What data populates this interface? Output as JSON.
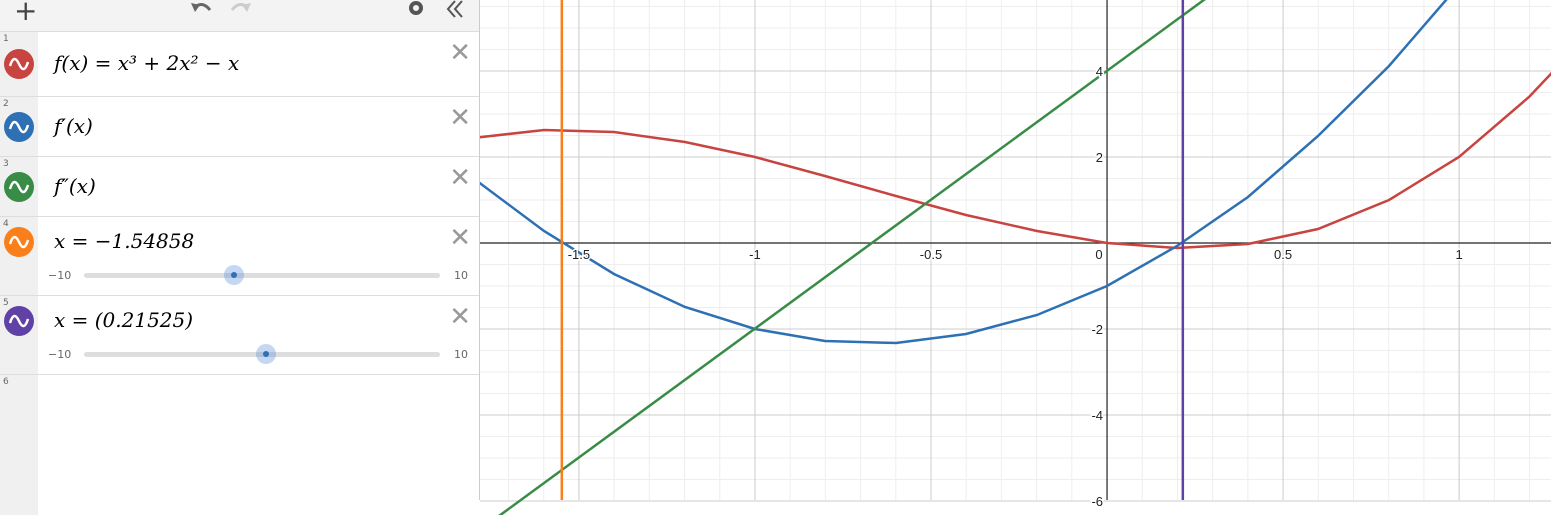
{
  "toolbar": {
    "add": "+"
  },
  "expressions": [
    {
      "index": "1",
      "text": "f(x) = x³ + 2x² − x",
      "color": "#c74440"
    },
    {
      "index": "2",
      "text": "f′(x)",
      "color": "#2d70b3"
    },
    {
      "index": "3",
      "text": "f″(x)",
      "color": "#388c46"
    },
    {
      "index": "4",
      "text": "x = −1.54858",
      "value": -1.54858,
      "color": "#fa7e19",
      "slider": {
        "min": {
          "value": -10,
          "label": "−10"
        },
        "max": 10
      }
    },
    {
      "index": "5",
      "text": "x = (0.21525)",
      "value": 0.21525,
      "color": "#6042a6",
      "slider": {
        "min": {
          "value": -10,
          "label": "−10"
        },
        "max": 10
      }
    },
    {
      "index": "6"
    }
  ],
  "graph": {
    "xlim": [
      -1.781,
      1.261
    ],
    "ylim": [
      -5.977,
      5.651
    ],
    "xticks": [
      -1.5,
      -1,
      -0.5,
      0,
      0.5,
      1
    ],
    "yticks": [
      -6,
      -4,
      -2,
      2,
      4
    ]
  }
}
